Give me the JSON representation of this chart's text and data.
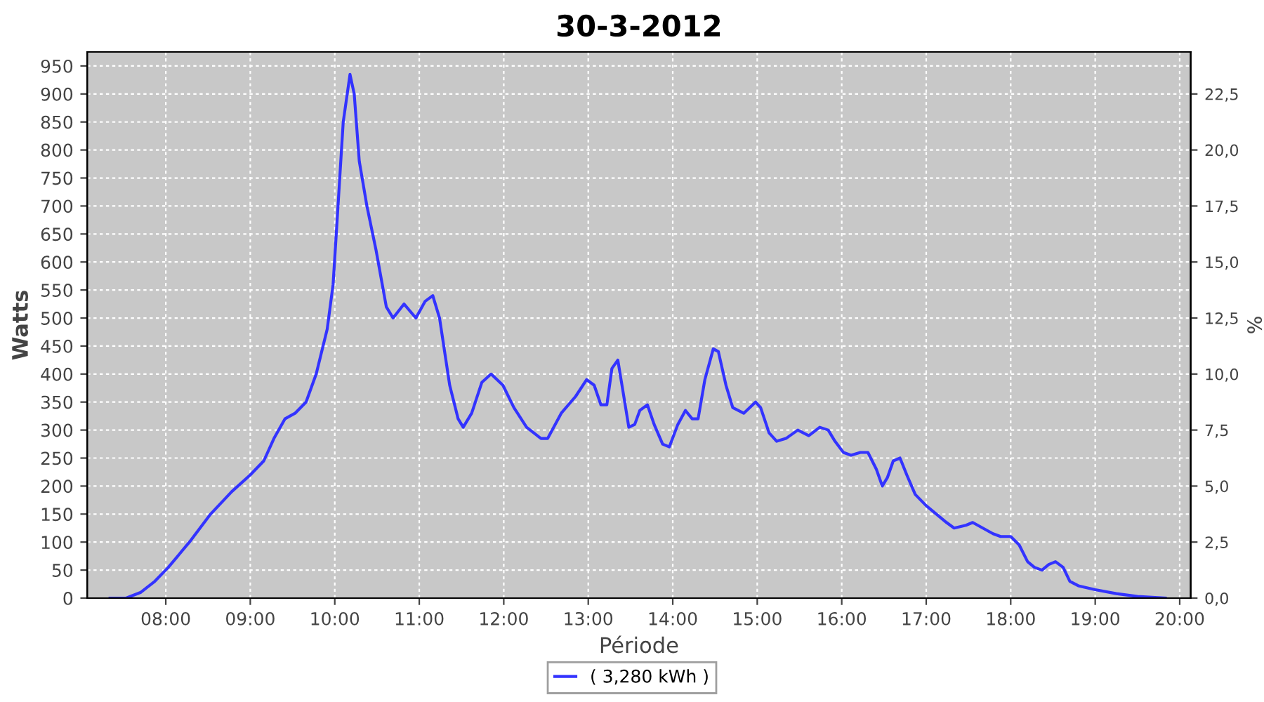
{
  "chart_data": {
    "type": "line",
    "title": "30-3-2012",
    "xlabel": "Période",
    "ylabel": "Watts",
    "y2label": "%",
    "xlim": [
      7.07,
      20.13
    ],
    "xticks": [
      {
        "value": 8,
        "label": "08:00"
      },
      {
        "value": 9,
        "label": "09:00"
      },
      {
        "value": 10,
        "label": "10:00"
      },
      {
        "value": 11,
        "label": "11:00"
      },
      {
        "value": 12,
        "label": "12:00"
      },
      {
        "value": 13,
        "label": "13:00"
      },
      {
        "value": 14,
        "label": "14:00"
      },
      {
        "value": 15,
        "label": "15:00"
      },
      {
        "value": 16,
        "label": "16:00"
      },
      {
        "value": 17,
        "label": "17:00"
      },
      {
        "value": 18,
        "label": "18:00"
      },
      {
        "value": 19,
        "label": "19:00"
      },
      {
        "value": 20,
        "label": "20:00"
      }
    ],
    "ylim": [
      0,
      975
    ],
    "yticks": [
      0,
      50,
      100,
      150,
      200,
      250,
      300,
      350,
      400,
      450,
      500,
      550,
      600,
      650,
      700,
      750,
      800,
      850,
      900,
      950
    ],
    "y2lim": [
      0,
      24.375
    ],
    "y2ticks": [
      {
        "value": 0,
        "label": "0,0"
      },
      {
        "value": 2.5,
        "label": "2,5"
      },
      {
        "value": 5,
        "label": "5,0"
      },
      {
        "value": 7.5,
        "label": "7,5"
      },
      {
        "value": 10,
        "label": "10,0"
      },
      {
        "value": 12.5,
        "label": "12,5"
      },
      {
        "value": 15,
        "label": "15,0"
      },
      {
        "value": 17.5,
        "label": "17,5"
      },
      {
        "value": 20,
        "label": "20,0"
      },
      {
        "value": 22.5,
        "label": "22,5"
      }
    ],
    "grid": true,
    "legend": "bottom",
    "marker": "none",
    "line_style": "solid",
    "x": [
      7.34,
      7.53,
      7.7,
      7.87,
      8.03,
      8.28,
      8.53,
      8.78,
      9.0,
      9.16,
      9.28,
      9.41,
      9.53,
      9.66,
      9.78,
      9.91,
      9.98,
      10.03,
      10.1,
      10.18,
      10.23,
      10.29,
      10.38,
      10.49,
      10.61,
      10.69,
      10.82,
      10.96,
      11.07,
      11.16,
      11.24,
      11.36,
      11.46,
      11.52,
      11.62,
      11.74,
      11.85,
      11.99,
      12.12,
      12.27,
      12.44,
      12.52,
      12.68,
      12.85,
      12.98,
      13.07,
      13.15,
      13.22,
      13.28,
      13.35,
      13.41,
      13.48,
      13.55,
      13.61,
      13.7,
      13.78,
      13.88,
      13.96,
      14.06,
      14.15,
      14.23,
      14.3,
      14.38,
      14.48,
      14.54,
      14.63,
      14.71,
      14.84,
      14.98,
      15.04,
      15.14,
      15.23,
      15.34,
      15.48,
      15.61,
      15.74,
      15.84,
      15.92,
      16.02,
      16.11,
      16.22,
      16.31,
      16.41,
      16.48,
      16.54,
      16.61,
      16.69,
      16.77,
      16.87,
      17.0,
      17.12,
      17.24,
      17.33,
      17.47,
      17.55,
      17.67,
      17.79,
      17.88,
      18.0,
      18.1,
      18.2,
      18.28,
      18.37,
      18.45,
      18.53,
      18.62,
      18.7,
      18.8,
      19.0,
      19.25,
      19.5,
      19.83
    ],
    "series": [
      {
        "name": "( 3,280 kWh )",
        "color": "#3333ff",
        "values": [
          0,
          0,
          10,
          30,
          55,
          100,
          150,
          190,
          220,
          245,
          285,
          320,
          330,
          350,
          400,
          480,
          560,
          680,
          850,
          935,
          900,
          780,
          700,
          620,
          520,
          500,
          525,
          500,
          530,
          540,
          500,
          380,
          320,
          305,
          330,
          385,
          400,
          380,
          340,
          305,
          285,
          285,
          330,
          360,
          390,
          380,
          345,
          345,
          410,
          425,
          370,
          305,
          310,
          335,
          345,
          310,
          275,
          270,
          310,
          335,
          320,
          320,
          390,
          445,
          440,
          380,
          340,
          330,
          350,
          340,
          295,
          280,
          285,
          300,
          290,
          305,
          300,
          280,
          260,
          255,
          260,
          260,
          230,
          200,
          215,
          245,
          250,
          220,
          185,
          165,
          150,
          135,
          125,
          130,
          135,
          125,
          115,
          110,
          110,
          95,
          65,
          55,
          50,
          60,
          65,
          55,
          30,
          22,
          15,
          8,
          3,
          0
        ]
      }
    ]
  }
}
